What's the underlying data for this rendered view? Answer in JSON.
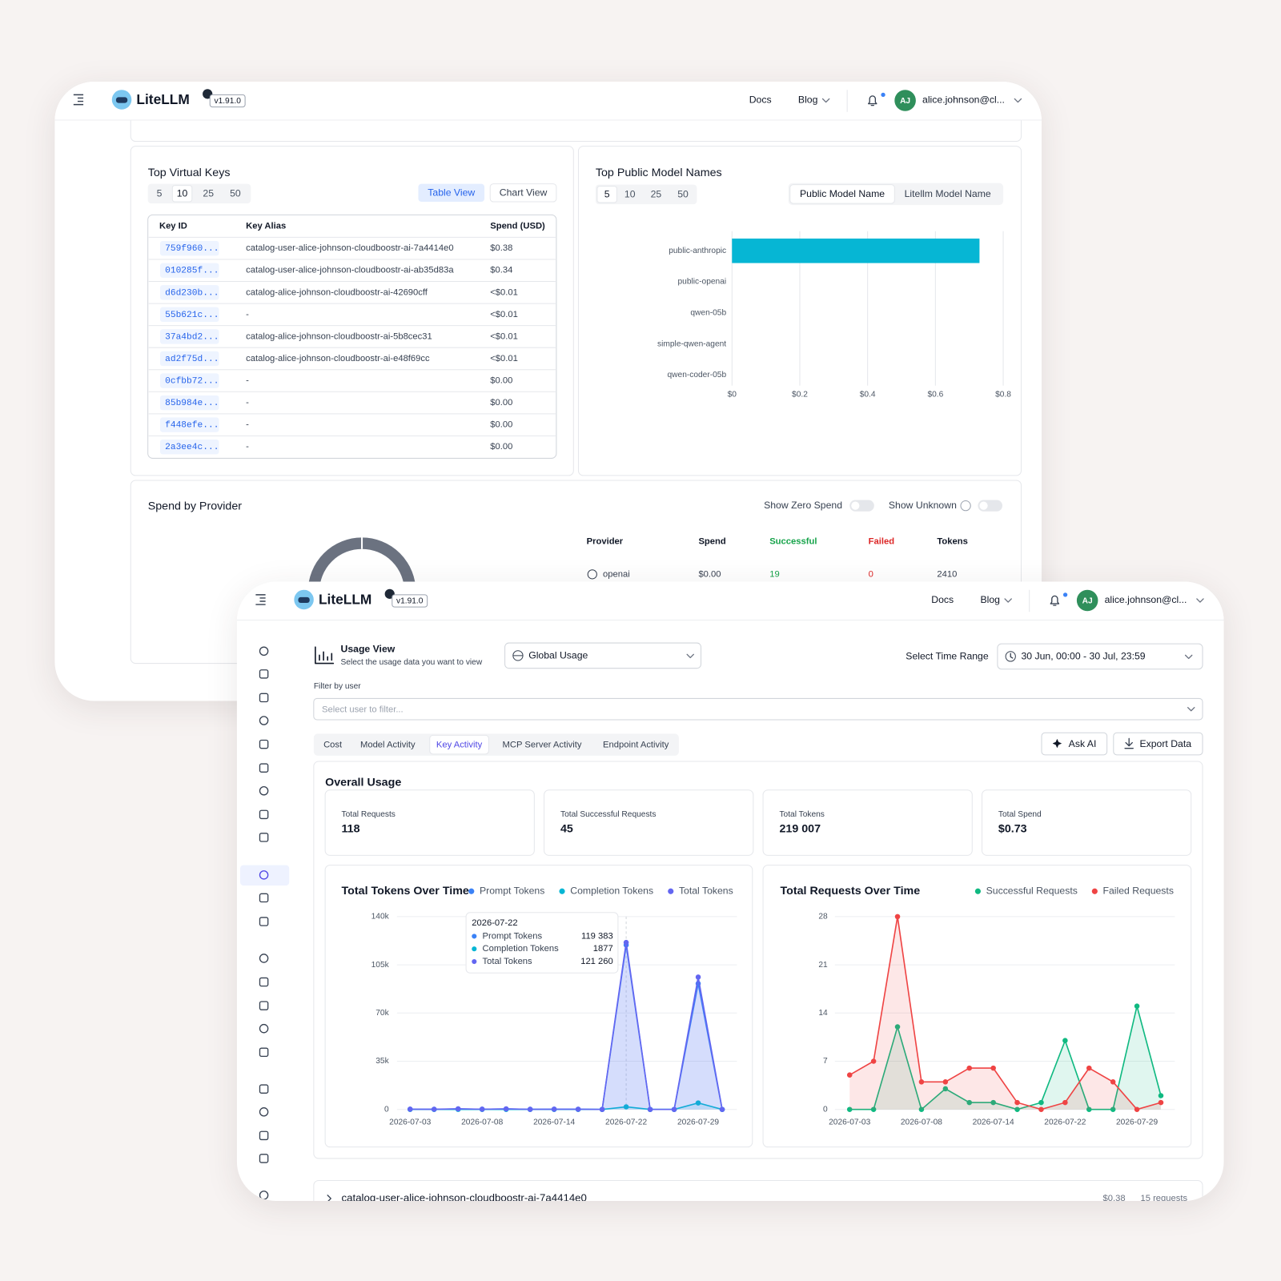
{
  "back_window": {
    "header": {
      "brand": "LiteLLM",
      "version": "v1.91.0",
      "nav": [
        "Docs",
        "Blog"
      ],
      "avatar": "AJ",
      "user": "alice.johnson@cl..."
    },
    "top_virtual_keys": {
      "page_sizes": [
        "5",
        "10",
        "25",
        "50"
      ],
      "active_page_size": 1,
      "views": [
        "Table View",
        "Chart View"
      ],
      "active_view": 0,
      "columns": [
        "Key ID",
        "Key Alias",
        "Spend (USD)"
      ],
      "title": "Top Virtual Keys",
      "rows": [
        [
          "759f960...",
          "catalog-user-alice-johnson-cloudboostr-ai-7a4414e0",
          "$0.38"
        ],
        [
          "010285f...",
          "catalog-user-alice-johnson-cloudboostr-ai-ab35d83a",
          "$0.34"
        ],
        [
          "d6d230b...",
          "catalog-alice-johnson-cloudboostr-ai-42690cff",
          "<$0.01"
        ],
        [
          "55b621c...",
          "-",
          "<$0.01"
        ],
        [
          "37a4bd2...",
          "catalog-alice-johnson-cloudboostr-ai-5b8cec31",
          "<$0.01"
        ],
        [
          "ad2f75d...",
          "catalog-alice-johnson-cloudboostr-ai-e48f69cc",
          "<$0.01"
        ],
        [
          "0cfbb72...",
          "-",
          "$0.00"
        ],
        [
          "85b984e...",
          "-",
          "$0.00"
        ],
        [
          "f448efe...",
          "-",
          "$0.00"
        ],
        [
          "2a3ee4c...",
          "-",
          "$0.00"
        ]
      ]
    },
    "top_public_model_names": {
      "page_sizes": [
        "5",
        "10",
        "25",
        "50"
      ],
      "active_page_size": 0,
      "views": [
        "Public Model Name",
        "Litellm Model Name"
      ],
      "active_view": 0
    },
    "spend_by_provider": {
      "title": "Spend by Provider",
      "toggles": [
        "Show Zero Spend",
        "Show Unknown"
      ],
      "columns": [
        "Provider",
        "Spend",
        "Successful",
        "Failed",
        "Tokens"
      ],
      "rows": [
        [
          "openai",
          "$0.00",
          "19",
          "0",
          "2410"
        ]
      ]
    }
  },
  "front_window": {
    "header": {
      "brand": "LiteLLM",
      "version": "v1.91.0",
      "nav": [
        "Docs",
        "Blog"
      ],
      "avatar": "AJ",
      "user": "alice.johnson@cl..."
    },
    "usage_view": {
      "title": "Usage View",
      "subtitle": "Select the usage data you want to view",
      "selector": "Global Usage",
      "time_range_label": "Select Time Range",
      "time_range": "30 Jun, 00:00 - 30 Jul, 23:59",
      "filter_label": "Filter by user",
      "filter_placeholder": "Select user to filter...",
      "tabs": [
        "Cost",
        "Model Activity",
        "Key Activity",
        "MCP Server Activity",
        "Endpoint Activity"
      ],
      "active_tab": 2,
      "actions": [
        "Ask AI",
        "Export Data"
      ]
    },
    "overall_usage": {
      "title": "Overall Usage",
      "stats": [
        {
          "label": "Total Requests",
          "value": "118"
        },
        {
          "label": "Total Successful Requests",
          "value": "45"
        },
        {
          "label": "Total Tokens",
          "value": "219 007"
        },
        {
          "label": "Total Spend",
          "value": "$0.73"
        }
      ]
    },
    "key_row": {
      "name": "catalog-user-alice-johnson-cloudboostr-ai-7a4414e0",
      "spend": "$0.38",
      "requests": "15 requests"
    }
  },
  "chart_data": [
    {
      "type": "bar",
      "orientation": "horizontal",
      "title": "Top Public Model Names",
      "categories": [
        "public-anthropic",
        "public-openai",
        "qwen-05b",
        "simple-qwen-agent",
        "qwen-coder-05b"
      ],
      "values": [
        0.73,
        0,
        0,
        0,
        0
      ],
      "color": "#06b6d4",
      "xlim": [
        0,
        0.8
      ],
      "xticks": [
        {
          "value": 0,
          "label": "$0"
        },
        {
          "value": 0.2,
          "label": "$0.2"
        },
        {
          "value": 0.4,
          "label": "$0.4"
        },
        {
          "value": 0.6,
          "label": "$0.6"
        },
        {
          "value": 0.8,
          "label": "$0.8"
        }
      ],
      "grid": true
    },
    {
      "type": "line",
      "title": "Total Tokens Over Time",
      "area": true,
      "grid": true,
      "categories": [
        "2026-07-03",
        null,
        null,
        "2026-07-08",
        null,
        null,
        "2026-07-14",
        null,
        null,
        "2026-07-22",
        null,
        null,
        "2026-07-29",
        null
      ],
      "series": [
        {
          "name": "Prompt Tokens",
          "color": "#3b82f6",
          "values": [
            170,
            112,
            400,
            150,
            362,
            84,
            150,
            128,
            0,
            119383,
            0,
            0,
            91400,
            0
          ]
        },
        {
          "name": "Completion Tokens",
          "color": "#06b6d4",
          "values": [
            10,
            8,
            20,
            10,
            18,
            6,
            10,
            9,
            0,
            1877,
            0,
            0,
            4700,
            0
          ]
        },
        {
          "name": "Total Tokens",
          "color": "#6366f1",
          "values": [
            180,
            120,
            420,
            160,
            380,
            90,
            160,
            137,
            0,
            121260,
            0,
            0,
            96100,
            0
          ]
        }
      ],
      "ylim": [
        0,
        140000
      ],
      "yticks": [
        0,
        {
          "value": 35000,
          "label": "35k"
        },
        {
          "value": 70000,
          "label": "70k"
        },
        {
          "value": 105000,
          "label": "105k"
        },
        {
          "value": 140000,
          "label": "140k"
        }
      ],
      "tooltip": {
        "index": 9,
        "value_labels": [
          "119 383",
          "1877",
          "121 260"
        ]
      }
    },
    {
      "type": "line",
      "title": "Total Requests Over Time",
      "area": true,
      "grid": true,
      "categories": [
        "2026-07-03",
        null,
        null,
        "2026-07-08",
        null,
        null,
        "2026-07-14",
        null,
        null,
        "2026-07-22",
        null,
        null,
        "2026-07-29",
        null
      ],
      "series": [
        {
          "name": "Successful Requests",
          "color": "#10b981",
          "values": [
            0,
            0,
            12,
            0,
            3,
            1,
            1,
            0,
            1,
            10,
            0,
            0,
            15,
            2
          ]
        },
        {
          "name": "Failed Requests",
          "color": "#ef4444",
          "values": [
            5,
            7,
            28,
            4,
            4,
            6,
            6,
            1,
            0,
            1,
            6,
            4,
            0,
            1
          ]
        }
      ],
      "ylim": [
        0,
        28
      ],
      "yticks": [
        0,
        7,
        14,
        21,
        28
      ]
    }
  ]
}
